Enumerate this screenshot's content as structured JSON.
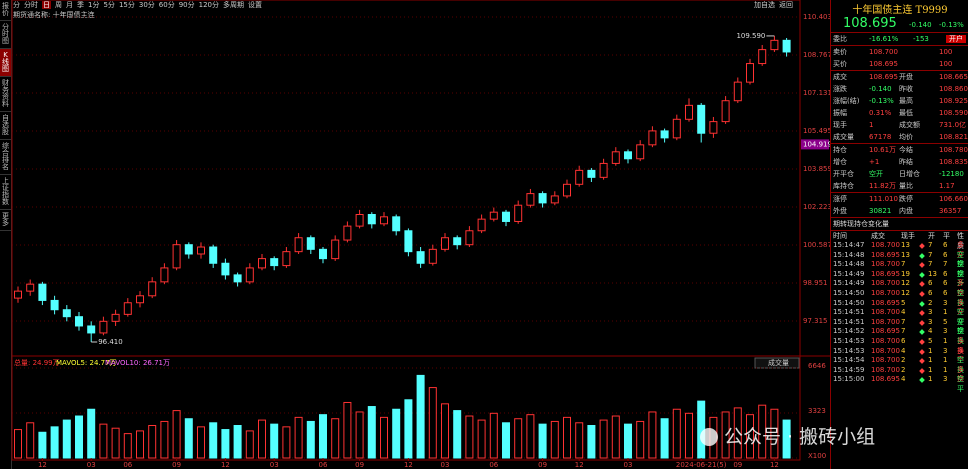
{
  "sidebar": [
    "报价",
    "分时图",
    "K线图",
    "财务资料",
    "自选股",
    "综合排名",
    "上证指数",
    "更多"
  ],
  "toolbar": {
    "left": [
      "分",
      "分时",
      "日",
      "周",
      "月",
      "季",
      "1分",
      "5分",
      "15分",
      "30分",
      "60分",
      "90分",
      "120分",
      "多周期",
      "设置"
    ],
    "right": [
      "加自选",
      "返回"
    ]
  },
  "subtitle": "期货通名称: 十年国债主连",
  "chart_data": {
    "type": "candlestick",
    "ylim": [
      95.85,
      110.62
    ],
    "yticks": [
      97.315,
      98.951,
      100.587,
      102.223,
      103.859,
      105.495,
      107.131,
      108.767,
      110.403
    ],
    "cursor_price": 104.919,
    "annotations": [
      {
        "index": 62,
        "value": 109.59,
        "label": "109.590"
      },
      {
        "index": 6,
        "value": 96.41,
        "label": "96.410"
      }
    ],
    "up_color": "#ff3232",
    "down_color": "#54ffff",
    "ohlc": [
      [
        98.3,
        98.8,
        98.1,
        98.6
      ],
      [
        98.6,
        99.1,
        98.4,
        98.9
      ],
      [
        98.9,
        99.0,
        98.0,
        98.2
      ],
      [
        98.2,
        98.4,
        97.6,
        97.8
      ],
      [
        97.8,
        98.0,
        97.3,
        97.5
      ],
      [
        97.5,
        97.7,
        96.9,
        97.1
      ],
      [
        97.1,
        97.3,
        96.41,
        96.8
      ],
      [
        96.8,
        97.5,
        96.7,
        97.3
      ],
      [
        97.3,
        97.8,
        97.1,
        97.6
      ],
      [
        97.6,
        98.3,
        97.5,
        98.1
      ],
      [
        98.1,
        98.6,
        97.9,
        98.4
      ],
      [
        98.4,
        99.2,
        98.3,
        99.0
      ],
      [
        99.0,
        99.8,
        98.9,
        99.6
      ],
      [
        99.6,
        100.8,
        99.5,
        100.6
      ],
      [
        100.6,
        100.7,
        100.0,
        100.2
      ],
      [
        100.2,
        100.7,
        100.0,
        100.5
      ],
      [
        100.5,
        100.6,
        99.6,
        99.8
      ],
      [
        99.8,
        100.0,
        99.1,
        99.3
      ],
      [
        99.3,
        99.4,
        98.8,
        99.0
      ],
      [
        99.0,
        99.8,
        98.9,
        99.6
      ],
      [
        99.6,
        100.2,
        99.5,
        100.0
      ],
      [
        100.0,
        100.1,
        99.5,
        99.7
      ],
      [
        99.7,
        100.5,
        99.6,
        100.3
      ],
      [
        100.3,
        101.1,
        100.2,
        100.9
      ],
      [
        100.9,
        101.0,
        100.2,
        100.4
      ],
      [
        100.4,
        100.5,
        99.8,
        100.0
      ],
      [
        100.0,
        101.0,
        99.9,
        100.8
      ],
      [
        100.8,
        101.6,
        100.7,
        101.4
      ],
      [
        101.4,
        102.1,
        101.3,
        101.9
      ],
      [
        101.9,
        102.0,
        101.3,
        101.5
      ],
      [
        101.5,
        102.0,
        101.4,
        101.8
      ],
      [
        101.8,
        101.9,
        101.0,
        101.2
      ],
      [
        101.2,
        101.3,
        100.1,
        100.3
      ],
      [
        100.3,
        100.5,
        99.6,
        99.8
      ],
      [
        99.8,
        100.6,
        99.7,
        100.4
      ],
      [
        100.4,
        101.1,
        100.3,
        100.9
      ],
      [
        100.9,
        101.0,
        100.4,
        100.6
      ],
      [
        100.6,
        101.4,
        100.5,
        101.2
      ],
      [
        101.2,
        101.9,
        101.1,
        101.7
      ],
      [
        101.7,
        102.2,
        101.6,
        102.0
      ],
      [
        102.0,
        102.1,
        101.4,
        101.6
      ],
      [
        101.6,
        102.5,
        101.5,
        102.3
      ],
      [
        102.3,
        103.0,
        102.2,
        102.8
      ],
      [
        102.8,
        102.9,
        102.2,
        102.4
      ],
      [
        102.4,
        102.9,
        102.3,
        102.7
      ],
      [
        102.7,
        103.4,
        102.6,
        103.2
      ],
      [
        103.2,
        104.0,
        103.1,
        103.8
      ],
      [
        103.8,
        103.9,
        103.3,
        103.5
      ],
      [
        103.5,
        104.3,
        103.4,
        104.1
      ],
      [
        104.1,
        104.8,
        104.0,
        104.6
      ],
      [
        104.6,
        104.7,
        104.1,
        104.3
      ],
      [
        104.3,
        105.1,
        104.2,
        104.9
      ],
      [
        104.9,
        105.7,
        104.8,
        105.5
      ],
      [
        105.5,
        105.6,
        105.0,
        105.2
      ],
      [
        105.2,
        106.2,
        105.1,
        106.0
      ],
      [
        106.0,
        106.9,
        105.9,
        106.6
      ],
      [
        106.6,
        106.7,
        105.0,
        105.4
      ],
      [
        105.4,
        106.1,
        105.2,
        105.9
      ],
      [
        105.9,
        107.0,
        105.8,
        106.8
      ],
      [
        106.8,
        107.8,
        106.7,
        107.6
      ],
      [
        107.6,
        108.6,
        107.5,
        108.4
      ],
      [
        108.4,
        109.2,
        108.3,
        109.0
      ],
      [
        109.0,
        109.59,
        108.9,
        109.4
      ],
      [
        109.4,
        109.5,
        108.7,
        108.9
      ]
    ],
    "volume": [
      2100,
      2600,
      1900,
      2300,
      2800,
      3100,
      3600,
      2500,
      2200,
      1800,
      2000,
      2400,
      2700,
      3500,
      2900,
      2300,
      2600,
      2100,
      2400,
      2000,
      2800,
      2500,
      2300,
      3000,
      2700,
      3200,
      2900,
      4100,
      3400,
      3800,
      3000,
      3600,
      4300,
      6100,
      5200,
      4000,
      3500,
      3100,
      2800,
      3300,
      2600,
      2900,
      3200,
      2500,
      2700,
      3000,
      2600,
      2400,
      2800,
      3100,
      2500,
      2700,
      3400,
      2900,
      3600,
      3300,
      4200,
      3000,
      3400,
      3700,
      3200,
      3900,
      3600,
      2800
    ],
    "vlim": [
      0,
      6646
    ],
    "vticks": [
      {
        "value": 0,
        "label": "X100"
      },
      3323,
      6646
    ],
    "volume_header": [
      "总量: 24.99万",
      "MAVOL5: 24.77万",
      "MAVOL10: 26.71万"
    ],
    "volume_selector": "成交量",
    "xticks": [
      {
        "value": 2,
        "label": "12"
      },
      {
        "value": 6,
        "label": "03"
      },
      {
        "value": 9,
        "label": "06"
      },
      {
        "value": 13,
        "label": "09"
      },
      {
        "value": 17,
        "label": "12"
      },
      {
        "value": 21,
        "label": "03"
      },
      {
        "value": 25,
        "label": "06"
      },
      {
        "value": 28,
        "label": "09"
      },
      {
        "value": 32,
        "label": "12"
      },
      {
        "value": 35,
        "label": "03"
      },
      {
        "value": 39,
        "label": "06"
      },
      {
        "value": 43,
        "label": "09"
      },
      {
        "value": 46,
        "label": "12"
      },
      {
        "value": 50,
        "label": "03"
      },
      {
        "value": 56,
        "label": "2024-06-21(5)"
      },
      {
        "value": 59,
        "label": "09"
      },
      {
        "value": 62,
        "label": "12"
      }
    ]
  },
  "quote": {
    "title": "十年国债主连 T9999",
    "price": "108.695",
    "change": "-0.140",
    "change_pct": "-0.13%",
    "ratio": [
      "委比",
      "-16.61%",
      "-153"
    ],
    "account_button": "开户",
    "rows": [
      [
        "卖价",
        "108.700",
        "",
        "100"
      ],
      [
        "买价",
        "108.695",
        "",
        "100"
      ],
      [
        "成交",
        "108.695",
        "开盘",
        "108.665"
      ],
      [
        "涨跌",
        "-0.140",
        "昨收",
        "108.860"
      ],
      [
        "涨幅(结)",
        "-0.13%",
        "最高",
        "108.925"
      ],
      [
        "振幅",
        "0.31%",
        "最低",
        "108.590"
      ],
      [
        "现手",
        "1",
        "成交额",
        "731.0亿"
      ],
      [
        "成交量",
        "67178",
        "均价",
        "108.821"
      ],
      [
        "持仓",
        "10.61万",
        "今结",
        "108.780"
      ],
      [
        "增仓",
        "+1",
        "昨结",
        "108.835"
      ],
      [
        "开平仓",
        "空开",
        "日增仓",
        "-12180"
      ],
      [
        "库持仓",
        "11.82万",
        "量比",
        "1.17"
      ],
      [
        "涨停",
        "111.010",
        "跌停",
        "106.660"
      ],
      [
        "外盘",
        "30821",
        "内盘",
        "36357"
      ]
    ]
  },
  "ticks_table": {
    "title": "期转现持仓变化量",
    "header": [
      "时间",
      "成交",
      "现手",
      "开",
      "平",
      "性质"
    ],
    "rows": [
      [
        "15:14:47",
        "108.700",
        "13",
        "7",
        "6",
        "多开"
      ],
      [
        "15:14:48",
        "108.695",
        "13",
        "7",
        "6",
        "空换"
      ],
      [
        "15:14:48",
        "108.700",
        "7",
        "7",
        "7",
        "空换"
      ],
      [
        "15:14:49",
        "108.695",
        "19",
        "13",
        "6",
        "空开"
      ],
      [
        "15:14:49",
        "108.700",
        "12",
        "6",
        "6",
        "多换"
      ],
      [
        "15:14:50",
        "108.700",
        "12",
        "6",
        "6",
        "空换"
      ],
      [
        "15:14:50",
        "108.695",
        "5",
        "2",
        "3",
        "多开"
      ],
      [
        "15:14:51",
        "108.700",
        "4",
        "3",
        "1",
        "空开"
      ],
      [
        "15:14:51",
        "108.700",
        "7",
        "3",
        "5",
        "空换"
      ],
      [
        "15:14:52",
        "108.695",
        "7",
        "4",
        "3",
        "空换"
      ],
      [
        "15:14:53",
        "108.700",
        "6",
        "5",
        "1",
        "多换"
      ],
      [
        "15:14:53",
        "108.700",
        "4",
        "1",
        "3",
        "多平"
      ],
      [
        "15:14:54",
        "108.700",
        "2",
        "1",
        "1",
        "空换"
      ],
      [
        "15:14:59",
        "108.700",
        "2",
        "1",
        "1",
        "多换"
      ],
      [
        "15:15:00",
        "108.695",
        "4",
        "1",
        "3",
        "空平"
      ]
    ]
  },
  "watermark": "公众号 · 搬砖小组"
}
